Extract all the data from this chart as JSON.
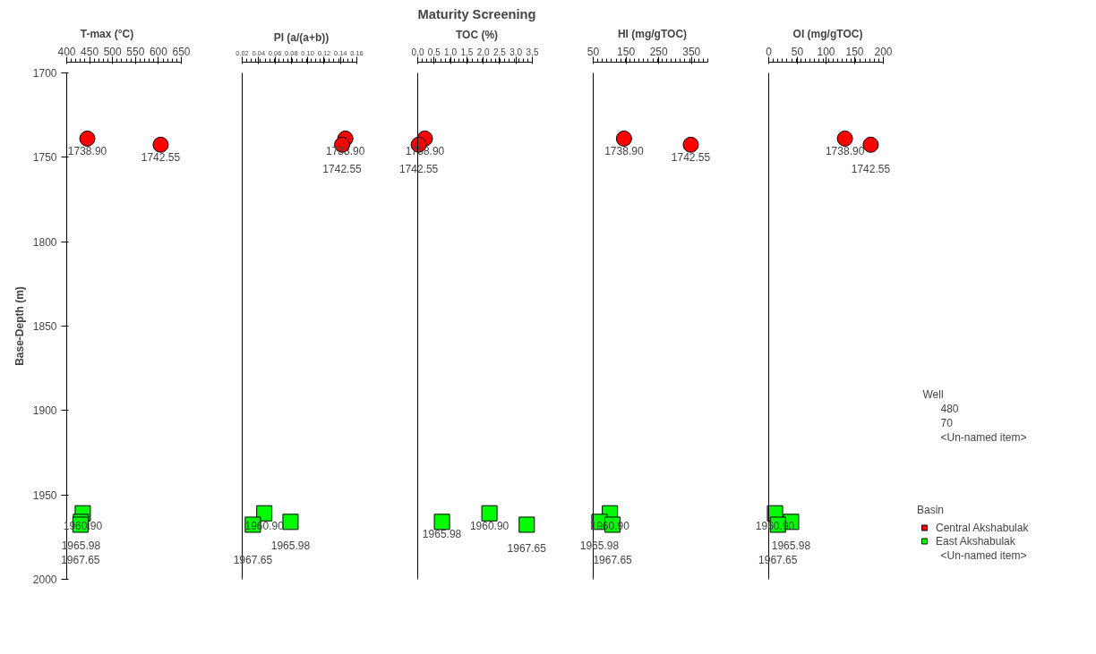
{
  "chart_data": [
    {
      "type": "scatter",
      "xlabel": "T-max (°C)",
      "ylabel": "Base-Depth (m)",
      "xlim": [
        400,
        650
      ],
      "xticks": [
        400,
        450,
        500,
        550,
        600,
        650
      ],
      "ylim": [
        2000,
        1700
      ],
      "yticks": [
        1700,
        1750,
        1800,
        1850,
        1900,
        1950,
        2000
      ],
      "grid": false,
      "legend": false,
      "series": [
        {
          "color": "#ff0000",
          "marker": "circle",
          "x": [
            445,
            605
          ],
          "values": [
            1738.9,
            1742.55
          ],
          "value_labels": [
            "1738.90",
            "1742.55"
          ]
        },
        {
          "color": "#00ff00",
          "marker": "square",
          "x": [
            435,
            431,
            430
          ],
          "values": [
            1960.9,
            1965.98,
            1967.65
          ],
          "value_labels": [
            "1960.90",
            "1965.98",
            "1967.65"
          ]
        }
      ]
    },
    {
      "type": "scatter",
      "xlabel": "PI (a/(a+b))",
      "xlim": [
        0.02,
        0.16
      ],
      "xticks": [
        {
          "value": 0.02,
          "label": "0.02"
        },
        {
          "value": 0.04,
          "label": "0.04"
        },
        {
          "value": 0.06,
          "label": "0.06"
        },
        {
          "value": 0.08,
          "label": "0.08"
        },
        {
          "value": 0.1,
          "label": "0.10"
        },
        {
          "value": 0.12,
          "label": "0.12"
        },
        {
          "value": 0.14,
          "label": "0.14"
        },
        {
          "value": 0.16,
          "label": "0.16"
        }
      ],
      "ylim": [
        2000,
        1700
      ],
      "tick_labels": "x",
      "grid": false,
      "legend": false,
      "series": [
        {
          "color": "#ff0000",
          "marker": "circle",
          "x": [
            0.146,
            0.142
          ],
          "values": [
            1738.9,
            1742.55
          ],
          "value_labels": [
            "1738.90",
            "1742.55"
          ]
        },
        {
          "color": "#00ff00",
          "marker": "square",
          "x": [
            0.047,
            0.079,
            0.033
          ],
          "values": [
            1960.9,
            1965.98,
            1967.65
          ],
          "value_labels": [
            "1960.90",
            "1965.98",
            "1967.65"
          ]
        }
      ]
    },
    {
      "type": "scatter",
      "title": "Maturity Screening",
      "xlabel": "TOC (%)",
      "xlim": [
        0,
        3.5
      ],
      "xticks": [
        {
          "value": 0,
          "label": "0.0"
        },
        0.5,
        {
          "value": 1,
          "label": "1.0"
        },
        1.5,
        {
          "value": 2,
          "label": "2.0"
        },
        2.5,
        {
          "value": 3,
          "label": "3.0"
        },
        3.5
      ],
      "ylim": [
        2000,
        1700
      ],
      "tick_labels": "x",
      "grid": false,
      "legend": false,
      "series": [
        {
          "color": "#ff0000",
          "marker": "circle",
          "x": [
            0.22,
            0.03
          ],
          "values": [
            1738.9,
            1742.55
          ],
          "value_labels": [
            "1738.90",
            "1742.55"
          ]
        },
        {
          "color": "#00ff00",
          "marker": "square",
          "x": [
            2.19,
            0.74,
            3.33
          ],
          "values": [
            1960.9,
            1965.98,
            1967.65
          ],
          "value_labels": [
            "1960.90",
            "1965.98",
            "1967.65"
          ]
        }
      ]
    },
    {
      "type": "scatter",
      "xlabel": "HI (mg/gTOC)",
      "xlim": [
        50,
        400
      ],
      "xticks": [
        50,
        150,
        250,
        350
      ],
      "ylim": [
        2000,
        1700
      ],
      "tick_labels": "x",
      "grid": false,
      "legend": false,
      "series": [
        {
          "color": "#ff0000",
          "marker": "circle",
          "x": [
            144,
            348
          ],
          "values": [
            1738.9,
            1742.55
          ],
          "value_labels": [
            "1738.90",
            "1742.55"
          ]
        },
        {
          "color": "#00ff00",
          "marker": "square",
          "x": [
            101,
            69,
            109
          ],
          "values": [
            1960.9,
            1965.98,
            1967.65
          ],
          "value_labels": [
            "1960.90",
            "1965.98",
            "1967.65"
          ]
        }
      ]
    },
    {
      "type": "scatter",
      "xlabel": "OI (mg/gTOC)",
      "xlim": [
        0,
        200
      ],
      "xticks": [
        0,
        50,
        100,
        150,
        200
      ],
      "ylim": [
        2000,
        1700
      ],
      "tick_labels": "x",
      "grid": false,
      "legend": "bottom right",
      "legend_title": "Basin",
      "annotations": [
        "Well",
        "480",
        "70",
        "<Un-named item>",
        "<Un-named item>"
      ],
      "series": [
        {
          "name": "Central Akshabulak",
          "color": "#ff0000",
          "marker": "circle",
          "x": [
            133,
            178
          ],
          "values": [
            1738.9,
            1742.55
          ],
          "value_labels": [
            "1738.90",
            "1742.55"
          ]
        },
        {
          "name": "East Akshabulak",
          "color": "#00ff00",
          "marker": "square",
          "x": [
            11,
            39,
            16
          ],
          "values": [
            1960.9,
            1965.98,
            1967.65
          ],
          "value_labels": [
            "1960.90",
            "1965.98",
            "1967.65"
          ]
        }
      ]
    }
  ]
}
